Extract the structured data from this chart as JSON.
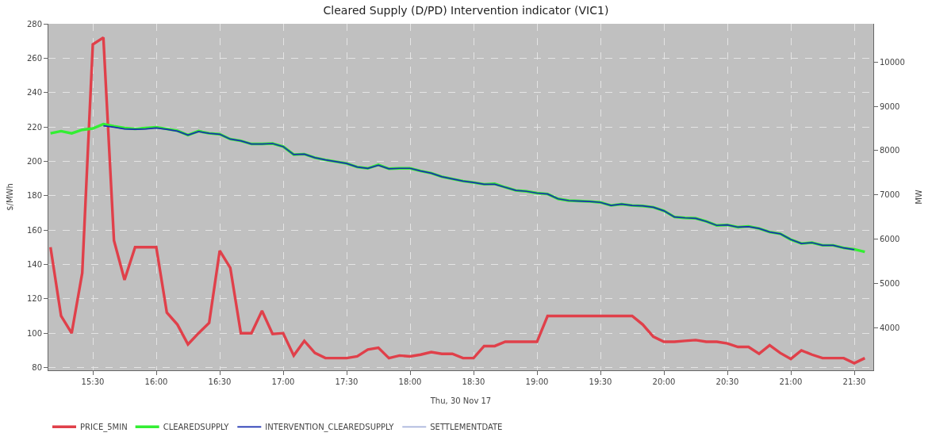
{
  "chart_data": {
    "type": "line",
    "title": "Cleared Supply (D/PD) Intervention indicator (VIC1)",
    "xlabel": "Thu, 30 Nov 17",
    "ylabel": "$/MWh",
    "y2label": "MW",
    "x": [
      "--11-30T15:10",
      "--11-30T15:15",
      "--11-30T15:20",
      "--11-30T15:25",
      "--11-30T15:30",
      "--11-30T15:35",
      "--11-30T15:40",
      "--11-30T15:45",
      "--11-30T15:50",
      "--11-30T15:55",
      "--11-30T16:00",
      "--11-30T16:05",
      "--11-30T16:10",
      "--11-30T16:15",
      "--11-30T16:20",
      "--11-30T16:25",
      "--11-30T16:30",
      "--11-30T16:35",
      "--11-30T16:40",
      "--11-30T16:45",
      "--11-30T16:50",
      "--11-30T16:55",
      "--11-30T17:00",
      "--11-30T17:05",
      "--11-30T17:10",
      "--11-30T17:15",
      "--11-30T17:20",
      "--11-30T17:25",
      "--11-30T17:30",
      "--11-30T17:35",
      "--11-30T17:40",
      "--11-30T17:45",
      "--11-30T17:50",
      "--11-30T17:55",
      "--11-30T18:00",
      "--11-30T18:05",
      "--11-30T18:10",
      "--11-30T18:15",
      "--11-30T18:20",
      "--11-30T18:25",
      "--11-30T18:30",
      "--11-30T18:35",
      "--11-30T18:40",
      "--11-30T18:45",
      "--11-30T18:50",
      "--11-30T18:55",
      "--11-30T19:00",
      "--11-30T19:05",
      "--11-30T19:10",
      "--11-30T19:15",
      "--11-30T19:20",
      "--11-30T19:25",
      "--11-30T19:30",
      "--11-30T19:35",
      "--11-30T19:40",
      "--11-30T19:45",
      "--11-30T19:50",
      "--11-30T19:55",
      "--11-30T20:00",
      "--11-30T20:05",
      "--11-30T20:10",
      "--11-30T20:15",
      "--11-30T20:20",
      "--11-30T20:25",
      "--11-30T20:30",
      "--11-30T20:35",
      "--11-30T20:40",
      "--11-30T20:45",
      "--11-30T20:50",
      "--11-30T20:55",
      "--11-30T21:00",
      "--11-30T21:05",
      "--11-30T21:10",
      "--11-30T21:15",
      "--11-30T21:20",
      "--11-30T21:25",
      "--11-30T21:30",
      "--11-30T21:35"
    ],
    "series": [
      {
        "name": "PRICE_5MIN",
        "color": "#e0404a",
        "values": [
          150,
          110,
          100,
          135,
          268,
          272,
          154,
          131,
          150,
          150,
          150,
          112,
          105,
          93.5,
          100,
          106,
          148,
          138,
          100,
          100,
          113,
          99.5,
          100,
          87,
          95.5,
          88.5,
          85.5,
          85.5,
          85.5,
          86.5,
          90.5,
          91.5,
          85.5,
          87,
          86.5,
          87.5,
          89,
          88,
          88,
          85.5,
          85.5,
          92.5,
          92.5,
          95,
          95,
          95,
          95,
          110,
          110,
          110,
          110,
          110,
          110,
          110,
          110,
          110,
          105,
          98,
          95,
          95,
          95.5,
          96,
          95,
          95,
          94,
          92,
          92,
          88,
          93,
          88.5,
          85,
          90,
          87.5,
          85.5,
          85.5,
          85.5,
          82.5,
          85.5
        ]
      },
      {
        "name": "CLEAREDSUPPLY",
        "color": "#33ee33",
        "axis": "y2",
        "values": [
          8390,
          8440,
          8390,
          8470,
          8500,
          8600,
          8550,
          8510,
          8490,
          8510,
          8530,
          8490,
          8450,
          8350,
          8440,
          8390,
          8370,
          8260,
          8220,
          8150,
          8150,
          8160,
          8090,
          7910,
          7920,
          7840,
          7790,
          7750,
          7710,
          7630,
          7600,
          7680,
          7590,
          7600,
          7600,
          7540,
          7490,
          7410,
          7360,
          7310,
          7280,
          7240,
          7250,
          7170,
          7100,
          7080,
          7040,
          7020,
          6910,
          6870,
          6860,
          6850,
          6830,
          6760,
          6790,
          6760,
          6750,
          6720,
          6640,
          6500,
          6480,
          6470,
          6400,
          6310,
          6320,
          6270,
          6290,
          6240,
          6160,
          6120,
          5990,
          5900,
          5920,
          5860,
          5860,
          5800,
          5770,
          5710
        ]
      },
      {
        "name": "INTERVENTION_CLEAREDSUPPLY",
        "color": "#1a2fb0",
        "axis": "y2",
        "x": [
          "--11-30T15:35",
          "--11-30T15:40",
          "--11-30T15:45",
          "--11-30T15:50",
          "--11-30T15:55",
          "--11-30T16:00",
          "--11-30T16:05",
          "--11-30T16:10",
          "--11-30T16:15",
          "--11-30T16:20",
          "--11-30T16:25",
          "--11-30T16:30",
          "--11-30T16:35",
          "--11-30T16:40",
          "--11-30T16:45",
          "--11-30T16:50",
          "--11-30T16:55",
          "--11-30T17:00",
          "--11-30T17:05",
          "--11-30T17:10",
          "--11-30T17:15",
          "--11-30T17:20",
          "--11-30T17:25",
          "--11-30T17:30",
          "--11-30T17:35",
          "--11-30T17:40",
          "--11-30T17:45",
          "--11-30T17:50",
          "--11-30T17:55",
          "--11-30T18:00",
          "--11-30T18:05",
          "--11-30T18:10",
          "--11-30T18:15",
          "--11-30T18:20",
          "--11-30T18:25",
          "--11-30T18:30",
          "--11-30T18:35",
          "--11-30T18:40",
          "--11-30T18:45",
          "--11-30T18:50",
          "--11-30T18:55",
          "--11-30T19:00",
          "--11-30T19:05",
          "--11-30T19:10",
          "--11-30T19:15",
          "--11-30T19:20",
          "--11-30T19:25",
          "--11-30T19:30",
          "--11-30T19:35",
          "--11-30T19:40",
          "--11-30T19:45",
          "--11-30T19:50",
          "--11-30T19:55",
          "--11-30T20:00",
          "--11-30T20:05",
          "--11-30T20:10",
          "--11-30T20:15",
          "--11-30T20:20",
          "--11-30T20:25",
          "--11-30T20:30",
          "--11-30T20:35",
          "--11-30T20:40",
          "--11-30T20:45",
          "--11-30T20:50",
          "--11-30T20:55",
          "--11-30T21:00",
          "--11-30T21:05",
          "--11-30T21:10",
          "--11-30T21:15",
          "--11-30T21:20",
          "--11-30T21:25",
          "--11-30T21:30"
        ],
        "values": [
          8560,
          8530,
          8490,
          8480,
          8490,
          8510,
          8480,
          8440,
          8350,
          8430,
          8390,
          8370,
          8260,
          8220,
          8150,
          8150,
          8160,
          8090,
          7910,
          7920,
          7840,
          7790,
          7750,
          7710,
          7630,
          7600,
          7670,
          7590,
          7600,
          7600,
          7540,
          7490,
          7410,
          7360,
          7310,
          7280,
          7240,
          7240,
          7170,
          7100,
          7080,
          7040,
          7020,
          6910,
          6870,
          6860,
          6850,
          6830,
          6760,
          6790,
          6760,
          6750,
          6720,
          6640,
          6500,
          6480,
          6470,
          6400,
          6310,
          6320,
          6270,
          6280,
          6240,
          6160,
          6120,
          5990,
          5900,
          5920,
          5860,
          5860,
          5800,
          5760
        ]
      },
      {
        "name": "SETTLEMENTDATE",
        "color": "#a8b4dc",
        "values": [
          null,
          null,
          null,
          null,
          null,
          null,
          null,
          null,
          null,
          null,
          null,
          null,
          null,
          null,
          null,
          null,
          null,
          null,
          null,
          null,
          null,
          null,
          null,
          null,
          null,
          null,
          null,
          null,
          null,
          null,
          null,
          null,
          null,
          null,
          null,
          null,
          null,
          null,
          null,
          null,
          null,
          null,
          null,
          null,
          null,
          null,
          null,
          null,
          null,
          null,
          null,
          null,
          null,
          null,
          null,
          null,
          null,
          null,
          null,
          null,
          null,
          null,
          null,
          null,
          null,
          null,
          null,
          null,
          null,
          null,
          null,
          null,
          null,
          null,
          null,
          null,
          null,
          null
        ]
      }
    ],
    "xlim": [
      "--11-30T15:09",
      "--11-30T21:39"
    ],
    "xticks": [
      {
        "value": "--11-30T15:30",
        "label": "15:30"
      },
      {
        "value": "--11-30T16:00",
        "label": "16:00"
      },
      {
        "value": "--11-30T16:30",
        "label": "16:30"
      },
      {
        "value": "--11-30T17:00",
        "label": "17:00"
      },
      {
        "value": "--11-30T17:30",
        "label": "17:30"
      },
      {
        "value": "--11-30T18:00",
        "label": "18:00"
      },
      {
        "value": "--11-30T18:30",
        "label": "18:30"
      },
      {
        "value": "--11-30T19:00",
        "label": "19:00"
      },
      {
        "value": "--11-30T19:30",
        "label": "19:30"
      },
      {
        "value": "--11-30T20:00",
        "label": "20:00"
      },
      {
        "value": "--11-30T20:30",
        "label": "20:30"
      },
      {
        "value": "--11-30T21:00",
        "label": "21:00"
      },
      {
        "value": "--11-30T21:30",
        "label": "21:30"
      }
    ],
    "ylim": [
      78.4,
      280
    ],
    "yticks": [
      80,
      100,
      120,
      140,
      160,
      180,
      200,
      220,
      240,
      260,
      280
    ],
    "y2lim": [
      3035,
      10866
    ],
    "y2ticks": [
      4000,
      5000,
      6000,
      7000,
      8000,
      9000,
      10000
    ],
    "grid": true,
    "legend": "bottom",
    "line_style": "solid",
    "marker": "none"
  }
}
